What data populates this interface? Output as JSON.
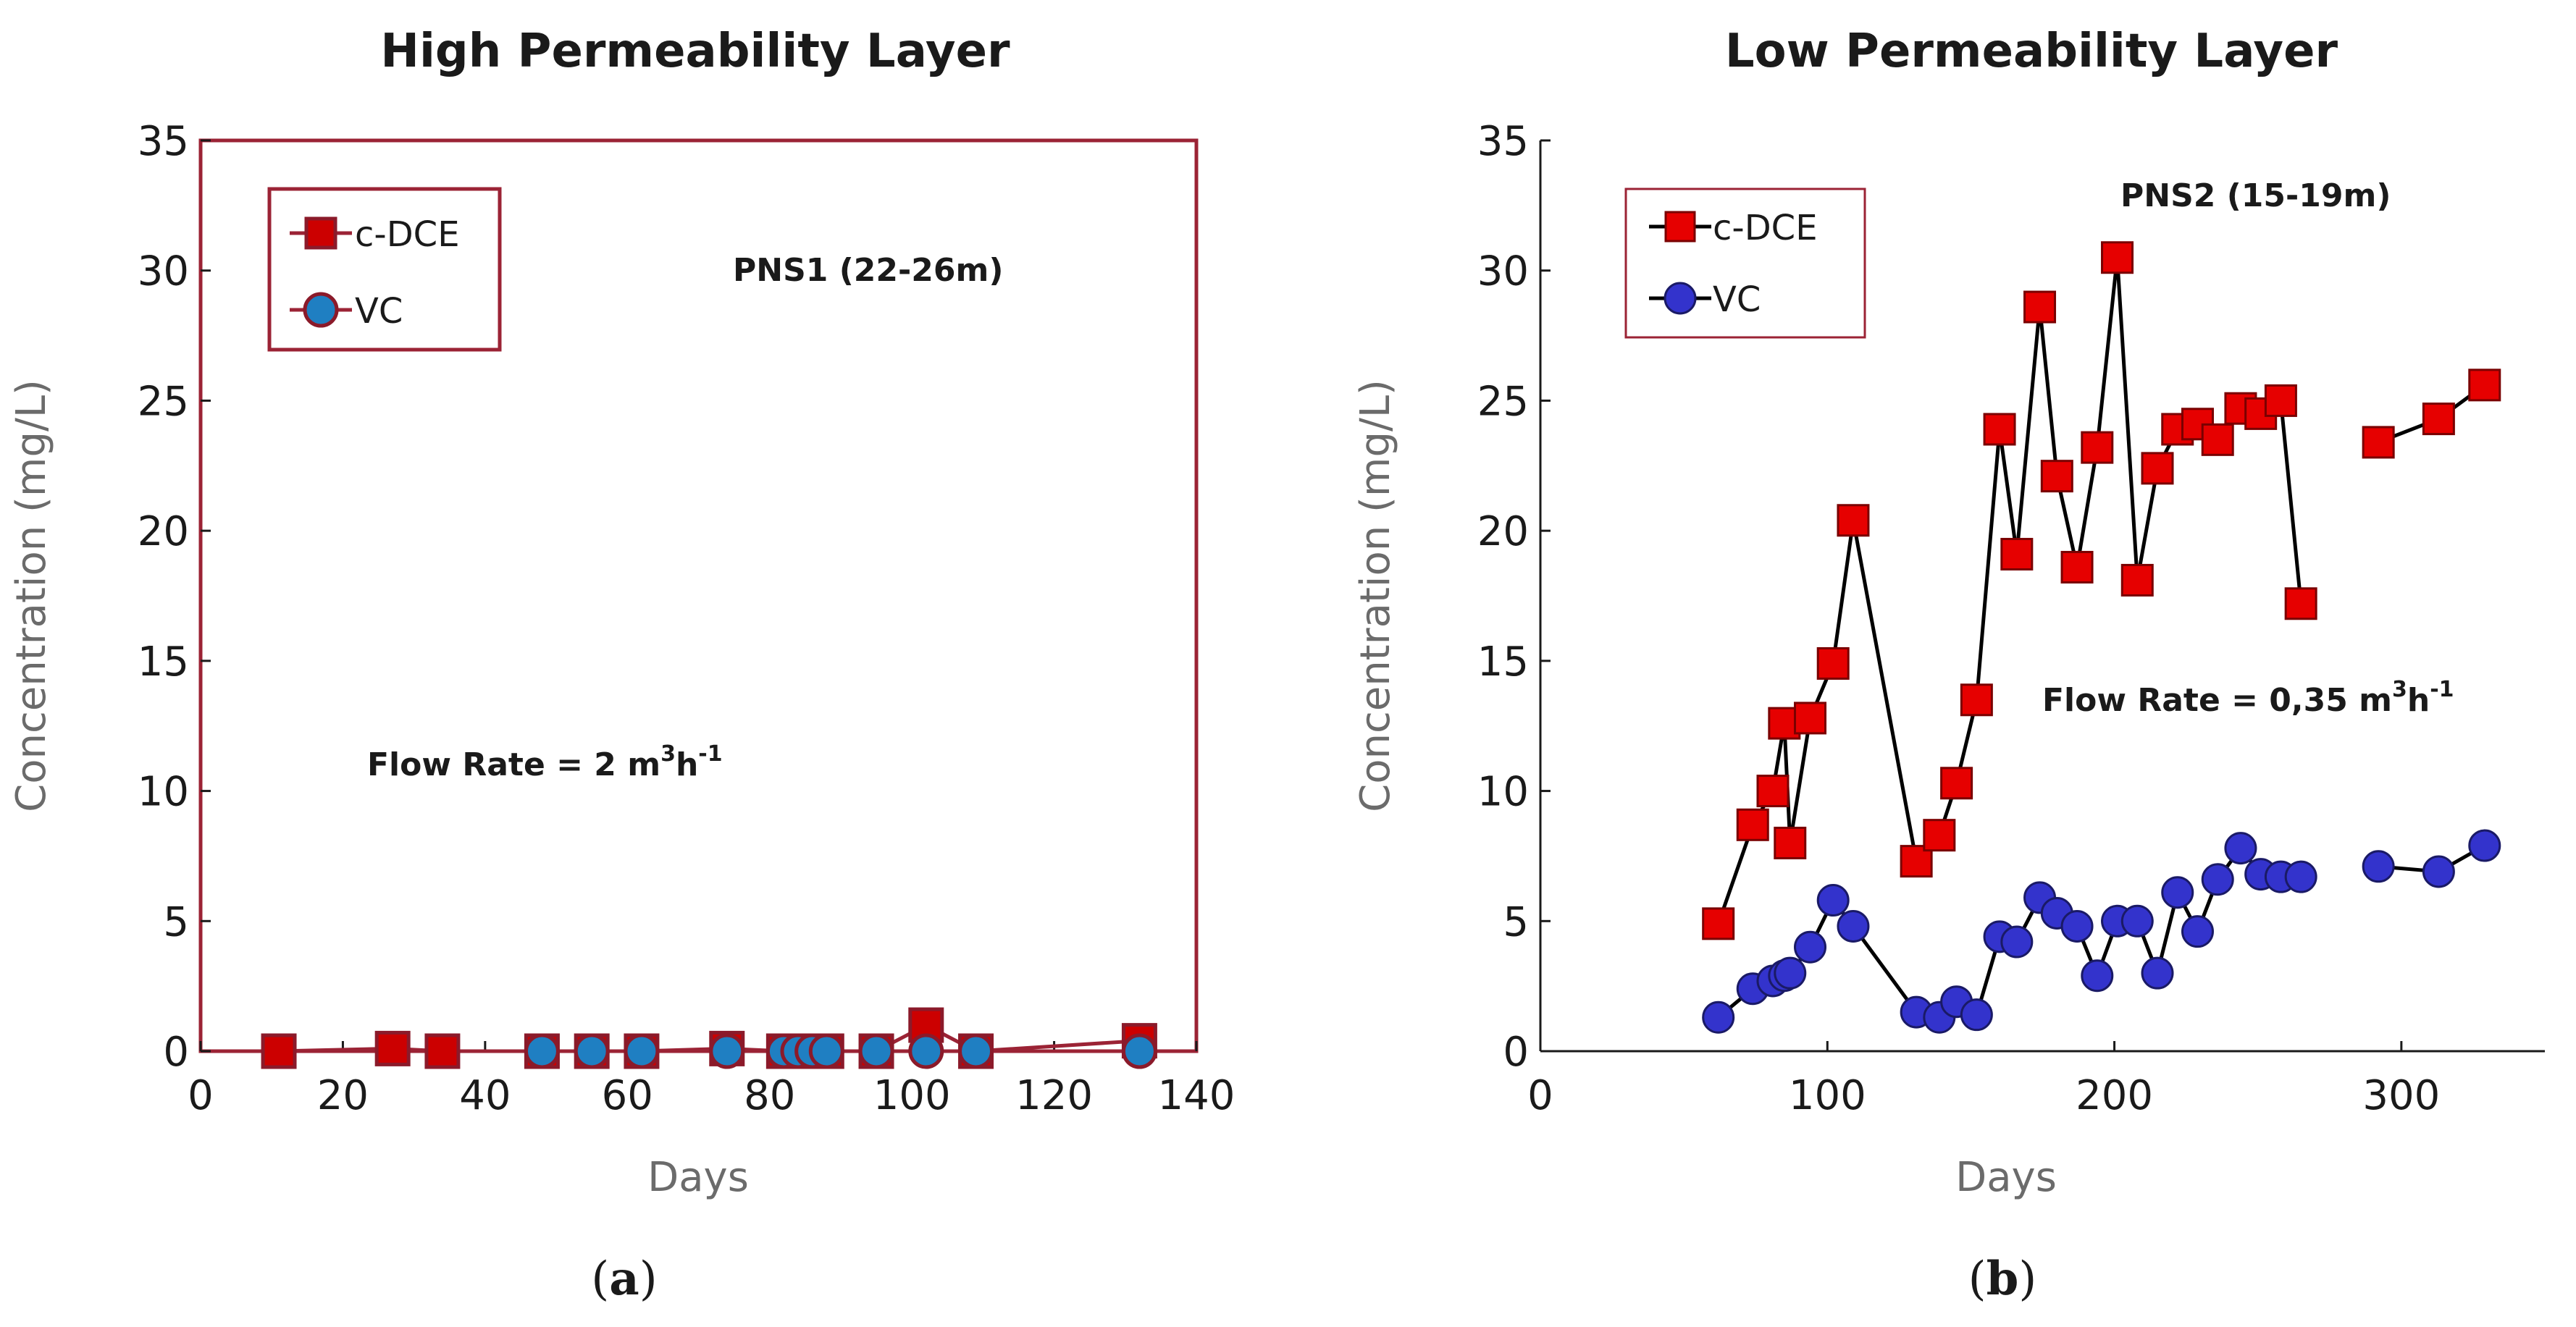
{
  "chart_data": [
    {
      "type": "line",
      "panel_label": "(a)",
      "title": "High Permeability Layer",
      "xlabel": "Days",
      "ylabel": "Concentration (mg/L)",
      "xlim": [
        0,
        140
      ],
      "ylim": [
        0,
        35
      ],
      "xticks": [
        0,
        20,
        40,
        60,
        80,
        100,
        120,
        140
      ],
      "yticks": [
        0,
        5,
        10,
        15,
        20,
        25,
        30,
        35
      ],
      "grid": false,
      "legend_position": "top-left",
      "well_label": "PNS1 (22-26m)",
      "flow_rate_text": "Flow Rate = 2 m",
      "flow_rate_sup": "3",
      "flow_rate_unit": "h",
      "flow_rate_unit_sup": "-1",
      "colors": {
        "frame": "#9b2335",
        "cdce_fill": "#cc0000",
        "cdce_edge": "#8b1a2a",
        "vc_fill": "#1f7fc2",
        "vc_edge": "#8b1a2a",
        "line": "#9b2335"
      },
      "series": [
        {
          "name": "c-DCE",
          "marker": "square",
          "x": [
            11,
            27,
            34,
            48,
            55,
            62,
            74,
            82,
            84,
            86,
            88,
            95,
            102,
            109,
            132
          ],
          "y": [
            0,
            0.1,
            0,
            0,
            0,
            0,
            0.1,
            0,
            0,
            0,
            0,
            0,
            1.0,
            0,
            0.4
          ]
        },
        {
          "name": "VC",
          "marker": "circle",
          "x": [
            48,
            55,
            62,
            74,
            82,
            84,
            86,
            88,
            95,
            102,
            109,
            132
          ],
          "y": [
            0,
            0,
            0,
            0,
            0,
            0,
            0,
            0,
            0,
            0,
            0,
            0
          ]
        }
      ]
    },
    {
      "type": "line",
      "panel_label": "(b)",
      "title": "Low Permeability Layer",
      "xlabel": "Days",
      "ylabel": "Concentration (mg/L)",
      "xlim": [
        0,
        350
      ],
      "ylim": [
        0,
        35
      ],
      "xticks": [
        0,
        100,
        200,
        300
      ],
      "yticks": [
        0,
        5,
        10,
        15,
        20,
        25,
        30,
        35
      ],
      "grid": false,
      "legend_position": "top-left",
      "well_label": "PNS2 (15-19m)",
      "flow_rate_text": "Flow Rate = 0,35 m",
      "flow_rate_sup": "3",
      "flow_rate_unit": "h",
      "flow_rate_unit_sup": "-1",
      "colors": {
        "frame": "#1a1a1a",
        "legend_frame": "#9b2335",
        "cdce_fill": "#e60000",
        "cdce_edge": "#7a0000",
        "vc_fill": "#3333cc",
        "vc_edge": "#1a1a66",
        "line": "#000000"
      },
      "series": [
        {
          "name": "c-DCE",
          "marker": "square",
          "segments": [
            {
              "x": [
                62,
                74,
                81,
                85,
                87,
                94,
                102,
                109,
                131,
                139,
                145,
                152,
                160,
                166,
                174,
                180,
                187,
                194,
                201,
                208,
                215,
                222,
                229,
                236,
                244,
                251,
                258,
                265
              ],
              "y": [
                4.9,
                8.7,
                10.0,
                12.6,
                8.0,
                12.8,
                14.9,
                20.4,
                7.3,
                8.3,
                10.3,
                13.5,
                23.9,
                19.1,
                28.6,
                22.1,
                18.6,
                23.2,
                30.5,
                18.1,
                22.4,
                23.9,
                24.1,
                23.5,
                24.7,
                24.5,
                25.0,
                17.2
              ]
            },
            {
              "x": [
                292,
                313,
                329
              ],
              "y": [
                23.4,
                24.3,
                25.6
              ]
            }
          ]
        },
        {
          "name": "VC",
          "marker": "circle",
          "segments": [
            {
              "x": [
                62,
                74,
                81,
                85,
                87,
                94,
                102,
                109,
                131,
                139,
                145,
                152,
                160,
                166,
                174,
                180,
                187,
                194,
                201,
                208,
                215,
                222,
                229,
                236,
                244,
                251,
                258,
                265
              ],
              "y": [
                1.3,
                2.4,
                2.7,
                2.9,
                3.0,
                4.0,
                5.8,
                4.8,
                1.5,
                1.3,
                1.9,
                1.4,
                4.4,
                4.2,
                5.9,
                5.3,
                4.8,
                2.9,
                5.0,
                5.0,
                3.0,
                6.1,
                4.6,
                6.6,
                7.8,
                6.8,
                6.7,
                6.7
              ]
            },
            {
              "x": [
                292,
                313,
                329
              ],
              "y": [
                7.1,
                6.9,
                7.9
              ]
            }
          ]
        }
      ]
    }
  ]
}
